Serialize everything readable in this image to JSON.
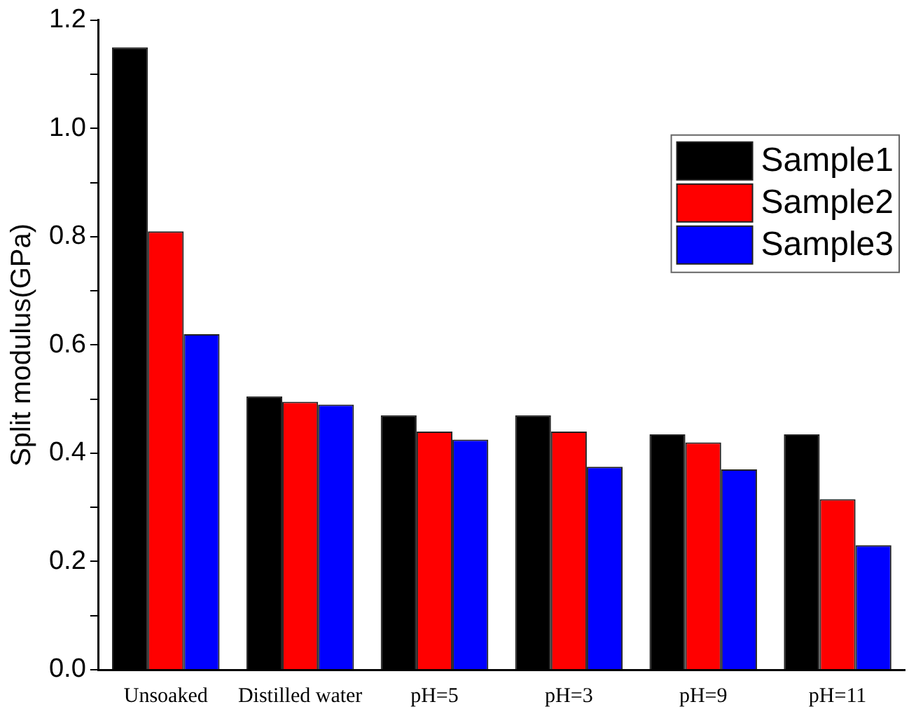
{
  "chart_data": {
    "type": "bar",
    "ylabel": "Split modulus(GPa)",
    "categories": [
      "Unsoaked",
      "Distilled water",
      "pH=5",
      "pH=3",
      "pH=9",
      "pH=11"
    ],
    "series": [
      {
        "name": "Sample1",
        "color": "#000000",
        "values": [
          1.15,
          0.505,
          0.47,
          0.47,
          0.435,
          0.435
        ]
      },
      {
        "name": "Sample2",
        "color": "#ff0000",
        "values": [
          0.81,
          0.495,
          0.44,
          0.44,
          0.42,
          0.315
        ]
      },
      {
        "name": "Sample3",
        "color": "#0000ff",
        "values": [
          0.62,
          0.49,
          0.425,
          0.375,
          0.37,
          0.23
        ]
      }
    ],
    "ylim": [
      0,
      1.2
    ],
    "yticks": [
      {
        "value": 0,
        "label": "0.0"
      },
      {
        "value": 0.1,
        "label": null
      },
      {
        "value": 0.2,
        "label": "0.2"
      },
      {
        "value": 0.3,
        "label": null
      },
      {
        "value": 0.4,
        "label": "0.4"
      },
      {
        "value": 0.5,
        "label": null
      },
      {
        "value": 0.6,
        "label": "0.6"
      },
      {
        "value": 0.7,
        "label": null
      },
      {
        "value": 0.8,
        "label": "0.8"
      },
      {
        "value": 0.9,
        "label": null
      },
      {
        "value": 1.0,
        "label": "1.0"
      },
      {
        "value": 1.1,
        "label": null
      },
      {
        "value": 1.2,
        "label": "1.2"
      }
    ],
    "grid": false,
    "legend": "top right"
  }
}
